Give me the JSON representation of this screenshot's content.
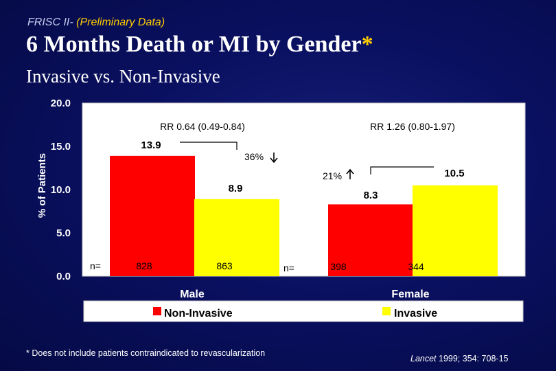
{
  "header": {
    "kicker_prefix": "FRISC II-",
    "kicker_highlight": "(Preliminary Data)",
    "title": "6 Months Death or MI by Gender",
    "title_asterisk": "*",
    "subtitle": "Invasive vs. Non-Invasive"
  },
  "colors": {
    "background": "#0a1060",
    "non_invasive": "#ff0000",
    "invasive": "#ffff00",
    "accent_yellow": "#ffcc00",
    "plot_area": "#ffffff"
  },
  "chart_data": {
    "type": "bar",
    "ylabel": "% of Patients",
    "ylim": [
      0,
      20
    ],
    "yticks": [
      "0.0",
      "5.0",
      "10.0",
      "15.0",
      "20.0"
    ],
    "yticks_values": [
      0,
      5,
      10,
      15,
      20
    ],
    "categories": [
      "Male",
      "Female"
    ],
    "series": [
      {
        "name": "Non-Invasive",
        "values": [
          13.9,
          8.3
        ],
        "value_labels": [
          "13.9",
          "8.3"
        ],
        "n": [
          "828",
          "398"
        ]
      },
      {
        "name": "Invasive",
        "values": [
          8.9,
          10.5
        ],
        "value_labels": [
          "8.9",
          "10.5"
        ],
        "n": [
          "863",
          "344"
        ]
      }
    ],
    "n_label": "n=",
    "annotations": {
      "rr_male": "RR 0.64 (0.49-0.84)",
      "rr_female": "RR 1.26 (0.80-1.97)",
      "change_male": "36%",
      "change_male_direction": "down",
      "change_female": "21%",
      "change_female_direction": "up"
    },
    "legend": {
      "position": "bottom",
      "entries": [
        "Non-Invasive",
        "Invasive"
      ]
    },
    "grid": false
  },
  "footer": {
    "footnote": "* Does not include patients contraindicated to revascularization",
    "citation_journal": "Lancet",
    "citation_rest": " 1999; 354: 708-15"
  }
}
